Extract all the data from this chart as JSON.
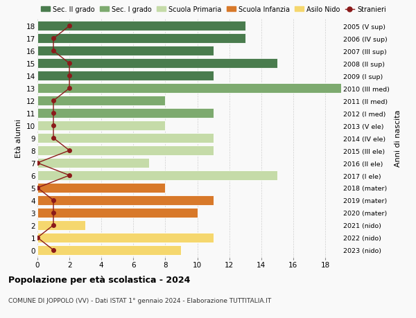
{
  "ages": [
    18,
    17,
    16,
    15,
    14,
    13,
    12,
    11,
    10,
    9,
    8,
    7,
    6,
    5,
    4,
    3,
    2,
    1,
    0
  ],
  "years": [
    "2005 (V sup)",
    "2006 (IV sup)",
    "2007 (III sup)",
    "2008 (II sup)",
    "2009 (I sup)",
    "2010 (III med)",
    "2011 (II med)",
    "2012 (I med)",
    "2013 (V ele)",
    "2014 (IV ele)",
    "2015 (III ele)",
    "2016 (II ele)",
    "2017 (I ele)",
    "2018 (mater)",
    "2019 (mater)",
    "2020 (mater)",
    "2021 (nido)",
    "2022 (nido)",
    "2023 (nido)"
  ],
  "bar_values": [
    13,
    13,
    11,
    15,
    11,
    19,
    8,
    11,
    8,
    11,
    11,
    7,
    15,
    8,
    11,
    10,
    3,
    11,
    9
  ],
  "bar_colors": [
    "#4a7c4e",
    "#4a7c4e",
    "#4a7c4e",
    "#4a7c4e",
    "#4a7c4e",
    "#7daa6f",
    "#7daa6f",
    "#7daa6f",
    "#c5dba8",
    "#c5dba8",
    "#c5dba8",
    "#c5dba8",
    "#c5dba8",
    "#d8792a",
    "#d8792a",
    "#d8792a",
    "#f5d76e",
    "#f5d76e",
    "#f5d76e"
  ],
  "stranieri_values": [
    2,
    1,
    1,
    2,
    2,
    2,
    1,
    1,
    1,
    1,
    2,
    0,
    2,
    0,
    1,
    1,
    1,
    0,
    1
  ],
  "stranieri_color": "#8b1a1a",
  "title": "Popolazione per età scolastica - 2024",
  "subtitle": "COMUNE DI JOPPOLO (VV) - Dati ISTAT 1° gennaio 2024 - Elaborazione TUTTITALIA.IT",
  "ylabel_left": "Età alunni",
  "ylabel_right": "Anni di nascita",
  "xlim": [
    0,
    19
  ],
  "xticks": [
    0,
    2,
    4,
    6,
    8,
    10,
    12,
    14,
    16,
    18
  ],
  "legend_labels": [
    "Sec. II grado",
    "Sec. I grado",
    "Scuola Primaria",
    "Scuola Infanzia",
    "Asilo Nido",
    "Stranieri"
  ],
  "legend_colors": [
    "#4a7c4e",
    "#7daa6f",
    "#c5dba8",
    "#d8792a",
    "#f5d76e",
    "#8b1a1a"
  ],
  "background_color": "#f9f9f9",
  "grid_color": "#cccccc"
}
